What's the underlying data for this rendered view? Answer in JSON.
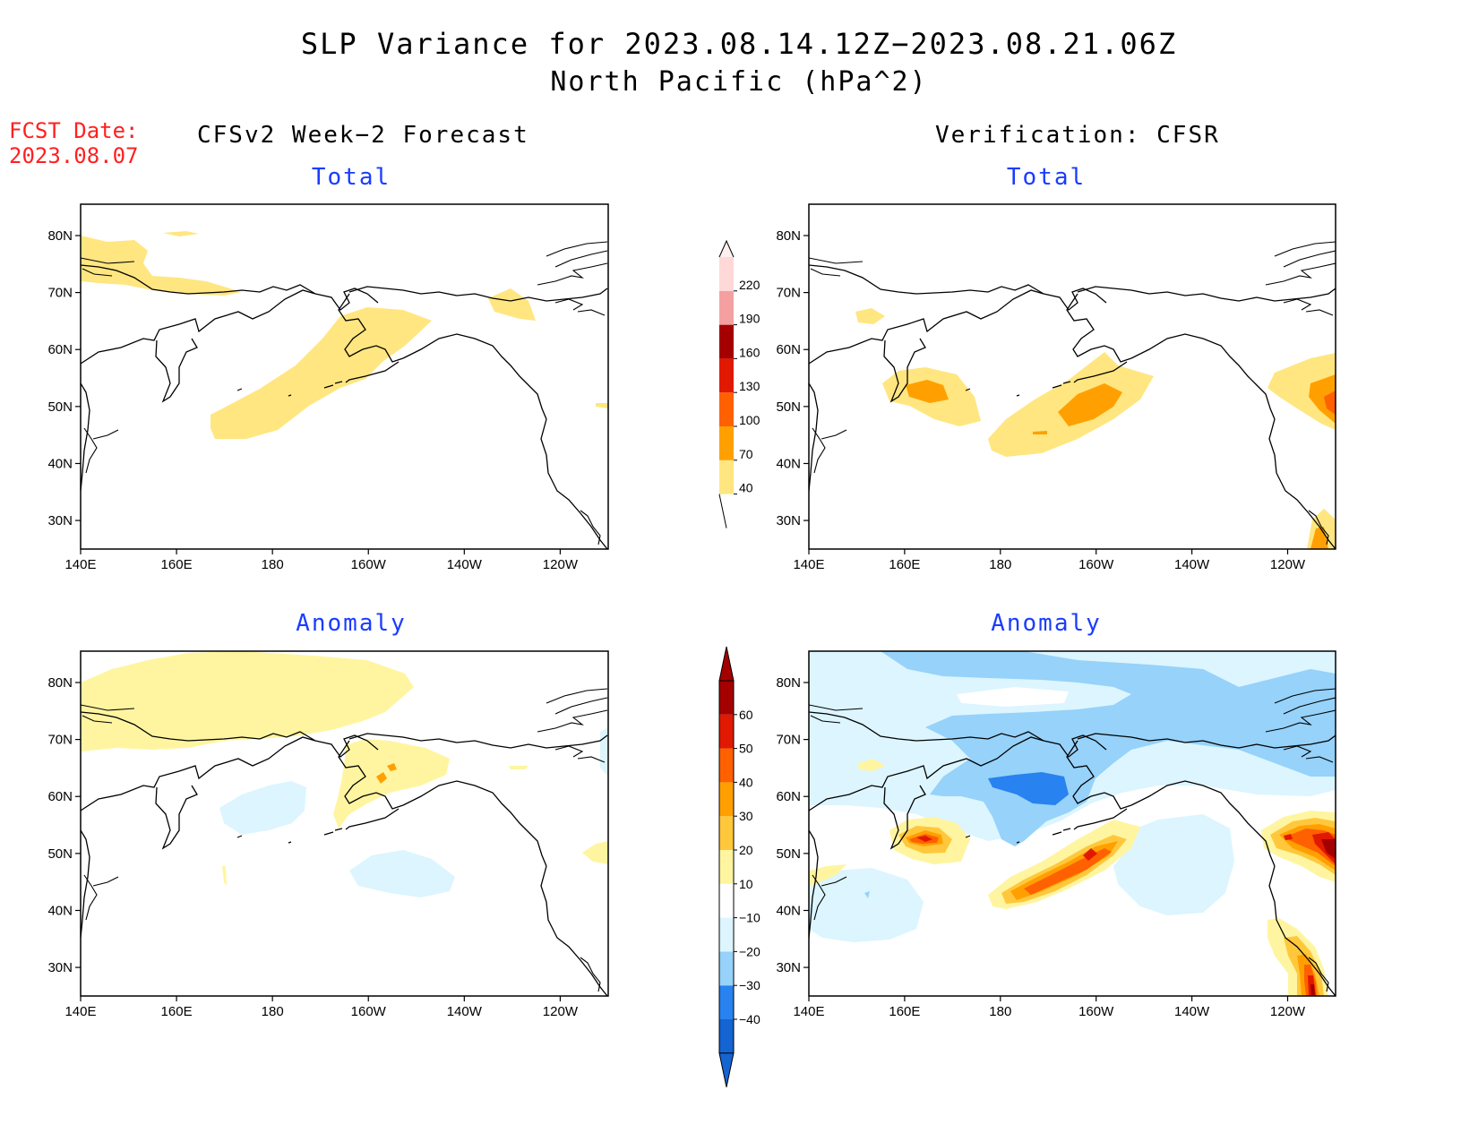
{
  "title": {
    "line1": "SLP Variance for 2023.08.14.12Z−2023.08.21.06Z",
    "line2": "North Pacific (hPa^2)"
  },
  "fcst_date": {
    "label": "FCST Date:",
    "value": "2023.08.07"
  },
  "columns": {
    "left": "CFSv2 Week−2 Forecast",
    "right": "Verification: CFSR"
  },
  "panels": {
    "top_left": "Total",
    "top_right": "Total",
    "bottom_left": "Anomaly",
    "bottom_right": "Anomaly"
  },
  "lon_labels": [
    "140E",
    "160E",
    "180",
    "160W",
    "140W",
    "120W"
  ],
  "lat_labels": [
    "80N",
    "70N",
    "60N",
    "50N",
    "40N",
    "30N"
  ],
  "colorbar_total": {
    "labels": [
      "40",
      "70",
      "100",
      "130",
      "160",
      "190",
      "220"
    ],
    "colors": [
      "#ffe680",
      "#ffa000",
      "#ff6000",
      "#e11900",
      "#a50000",
      "#f4a0a0",
      "#ffd8d8"
    ]
  },
  "colorbar_anomaly": {
    "labels": [
      "−40",
      "−30",
      "−20",
      "−10",
      "10",
      "20",
      "30",
      "40",
      "50",
      "60"
    ],
    "colors": [
      "#1464d2",
      "#2882f0",
      "#96d2fa",
      "#dcf5ff",
      "#ffffff",
      "#fff5a0",
      "#ffc83c",
      "#ffa000",
      "#ff6000",
      "#e11900",
      "#a50000"
    ]
  },
  "colors": {
    "c40": "#ffe680",
    "c70": "#ffa000",
    "c100": "#ff6000",
    "c130": "#e11900",
    "a10": "#fff5a0",
    "a20": "#ffc83c",
    "a30": "#ffa000",
    "a40": "#ff6000",
    "a50": "#e11900",
    "a60": "#a50000",
    "n10": "#dcf5ff",
    "n20": "#96d2fa",
    "n30": "#2882f0",
    "title_blue": "#1a3cff",
    "fcst_red": "#ff2020"
  }
}
